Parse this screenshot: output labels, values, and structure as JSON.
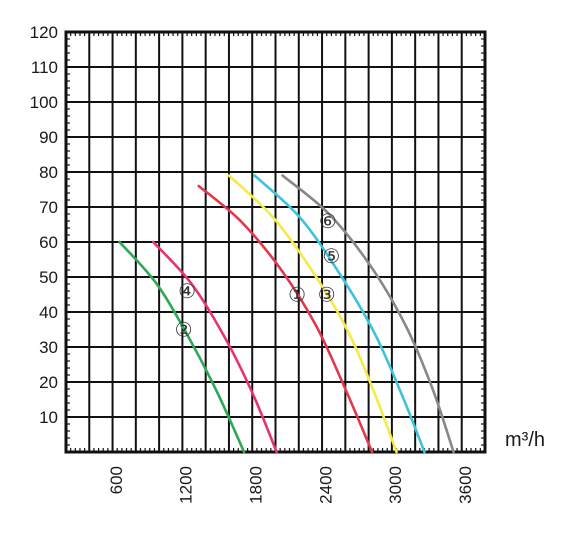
{
  "chart_data": {
    "type": "line",
    "xlabel": "",
    "ylabel": "",
    "x_unit_label": "m³/h",
    "xlim": [
      0,
      3600
    ],
    "ylim": [
      0,
      120
    ],
    "x_ticks": [
      600,
      1200,
      1800,
      2400,
      3000,
      3600
    ],
    "x_tick_labels": [
      "600",
      "1200",
      "1800",
      "2400",
      "3000",
      "3600"
    ],
    "y_ticks": [
      10,
      20,
      30,
      40,
      50,
      60,
      70,
      80,
      90,
      100,
      110,
      120
    ],
    "y_tick_labels": [
      "10",
      "20",
      "30",
      "40",
      "50",
      "60",
      "70",
      "80",
      "90",
      "100",
      "110",
      "120"
    ],
    "grid": true,
    "legend": "none",
    "series": [
      {
        "name": "①",
        "color": "#e2384b",
        "points": [
          [
            1140,
            76
          ],
          [
            1500,
            66
          ],
          [
            1850,
            52
          ],
          [
            2150,
            36
          ],
          [
            2400,
            18
          ],
          [
            2630,
            0
          ]
        ],
        "label_at": [
          1985,
          45
        ]
      },
      {
        "name": "②",
        "color": "#2fa857",
        "points": [
          [
            460,
            60
          ],
          [
            780,
            48
          ],
          [
            1050,
            33
          ],
          [
            1300,
            17
          ],
          [
            1530,
            0
          ]
        ],
        "label_at": [
          1010,
          35
        ]
      },
      {
        "name": "③",
        "color": "#f7e94a",
        "points": [
          [
            1400,
            79
          ],
          [
            1780,
            67
          ],
          [
            2130,
            51
          ],
          [
            2430,
            34
          ],
          [
            2660,
            16
          ],
          [
            2840,
            0
          ]
        ],
        "label_at": [
          2240,
          45
        ]
      },
      {
        "name": "④",
        "color": "#e7336f",
        "points": [
          [
            750,
            60
          ],
          [
            1080,
            48
          ],
          [
            1360,
            33
          ],
          [
            1600,
            17
          ],
          [
            1810,
            0
          ]
        ],
        "label_at": [
          1040,
          46
        ]
      },
      {
        "name": "⑤",
        "color": "#3fc3da",
        "points": [
          [
            1620,
            79
          ],
          [
            2010,
            67
          ],
          [
            2350,
            51
          ],
          [
            2650,
            34
          ],
          [
            2890,
            16
          ],
          [
            3080,
            0
          ]
        ],
        "label_at": [
          2280,
          56
        ]
      },
      {
        "name": "⑥",
        "color": "#888888",
        "points": [
          [
            1860,
            79
          ],
          [
            2260,
            68
          ],
          [
            2620,
            53
          ],
          [
            2920,
            36
          ],
          [
            3150,
            18
          ],
          [
            3330,
            0
          ]
        ],
        "label_at": [
          2250,
          66
        ]
      }
    ]
  }
}
